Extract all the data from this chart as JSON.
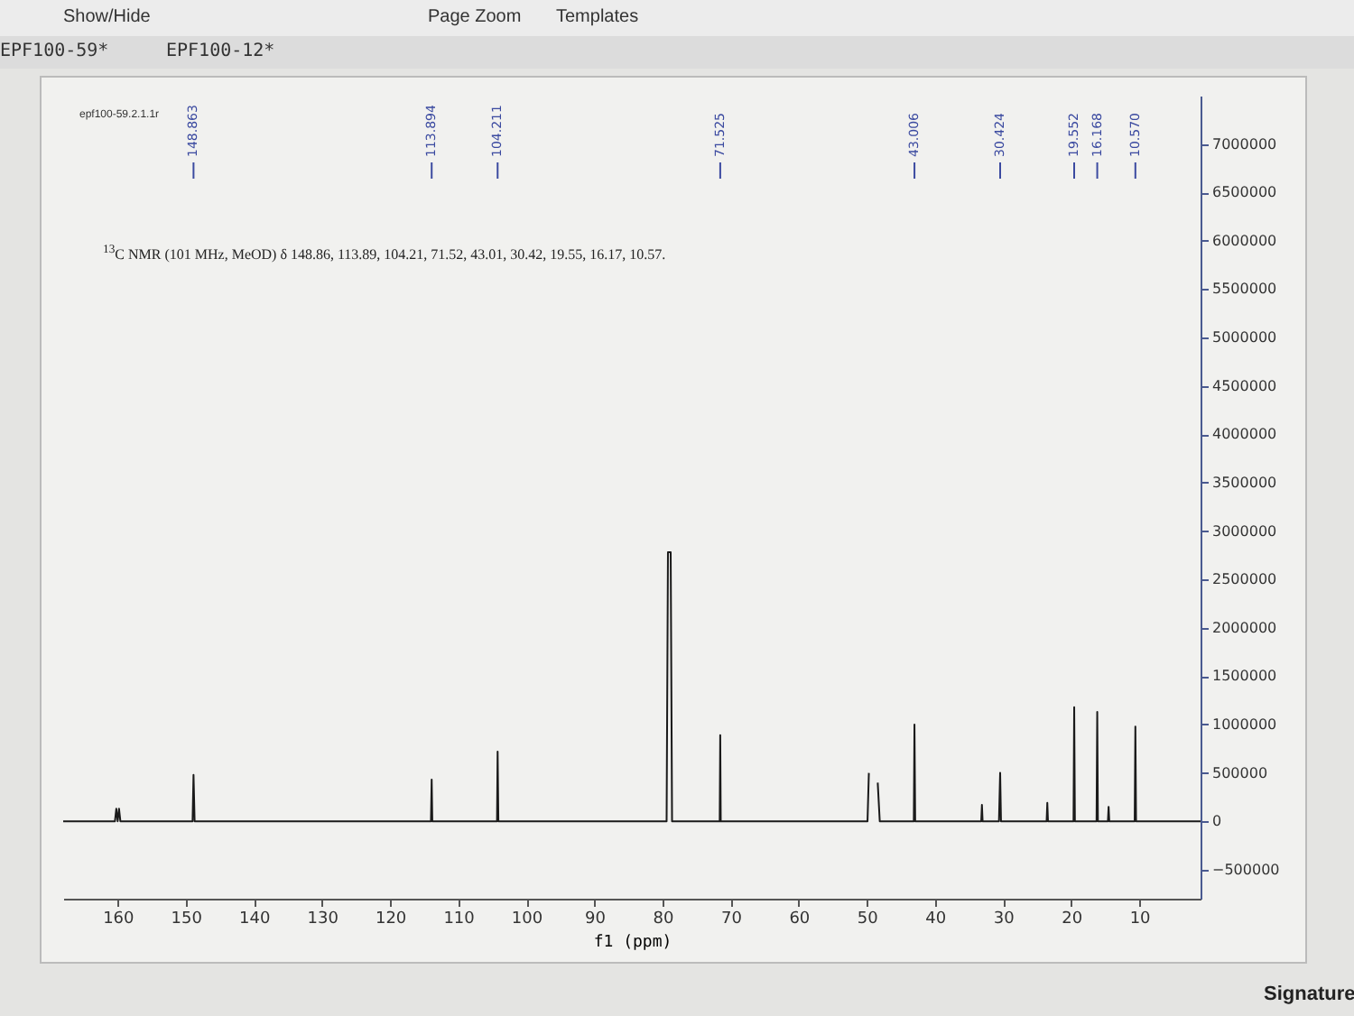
{
  "chart_data": {
    "type": "line",
    "xlabel": "f1 (ppm)",
    "x": [
      168,
      160.4,
      160.2,
      160.0,
      159.8,
      159.6,
      149.0,
      148.863,
      148.7,
      114.0,
      113.894,
      113.8,
      104.3,
      104.211,
      104.1,
      79.4,
      79.2,
      79.0,
      78.8,
      78.6,
      71.6,
      71.525,
      71.45,
      49.9,
      49.7,
      49.5,
      49.0,
      48.6,
      48.4,
      48.1,
      43.1,
      43.006,
      42.9,
      33.2,
      33.1,
      33.0,
      30.6,
      30.424,
      30.3,
      23.6,
      23.5,
      23.4,
      19.65,
      19.552,
      19.45,
      16.27,
      16.168,
      16.07,
      14.6,
      14.5,
      14.4,
      10.67,
      10.57,
      10.47,
      1
    ],
    "series": [
      {
        "color": "#1a1a1a",
        "values": [
          0,
          0,
          130000,
          0,
          130000,
          0,
          0,
          480000,
          0,
          0,
          430000,
          0,
          0,
          720000,
          0,
          0,
          2780000,
          2780000,
          2780000,
          0,
          0,
          890000,
          0,
          0,
          500000,
          null,
          null,
          null,
          400000,
          0,
          0,
          1000000,
          0,
          0,
          170000,
          0,
          0,
          500000,
          0,
          0,
          190000,
          0,
          0,
          1180000,
          0,
          0,
          1130000,
          0,
          0,
          150000,
          0,
          0,
          980000,
          0,
          0
        ]
      }
    ],
    "xlim": [
      168,
      1
    ],
    "xticks": [
      160,
      150,
      140,
      130,
      120,
      110,
      100,
      90,
      80,
      70,
      60,
      50,
      40,
      30,
      20,
      10
    ],
    "ylim": [
      -800000,
      7500000
    ],
    "yticks": [
      -500000,
      0,
      500000,
      1000000,
      1500000,
      2000000,
      2500000,
      3000000,
      3500000,
      4000000,
      4500000,
      5000000,
      5500000,
      6000000,
      6500000,
      7000000
    ],
    "grid": false,
    "marker": "none",
    "line_style": "solid",
    "annotations": [
      "epf100-59.2.1.1r",
      "$^{13}$C NMR (101 MHz, MeOD) δ 148.86, 113.89, 104.21, 71.52, 43.01, 30.42, 19.55, 16.17, 10.57.",
      {
        "text": "148.863",
        "x": 148.863
      },
      {
        "text": "113.894",
        "x": 113.894
      },
      {
        "text": "104.211",
        "x": 104.211
      },
      {
        "text": "71.525",
        "x": 71.525
      },
      {
        "text": "43.006",
        "x": 43.006
      },
      {
        "text": "30.424",
        "x": 30.424
      },
      {
        "text": "19.552",
        "x": 19.552
      },
      {
        "text": "16.168",
        "x": 16.168
      },
      {
        "text": "10.570",
        "x": 10.57
      },
      "Show/Hide",
      "Page Zoom",
      "Templates",
      "EPF100-59*",
      "EPF100-12*",
      "Signature"
    ]
  }
}
